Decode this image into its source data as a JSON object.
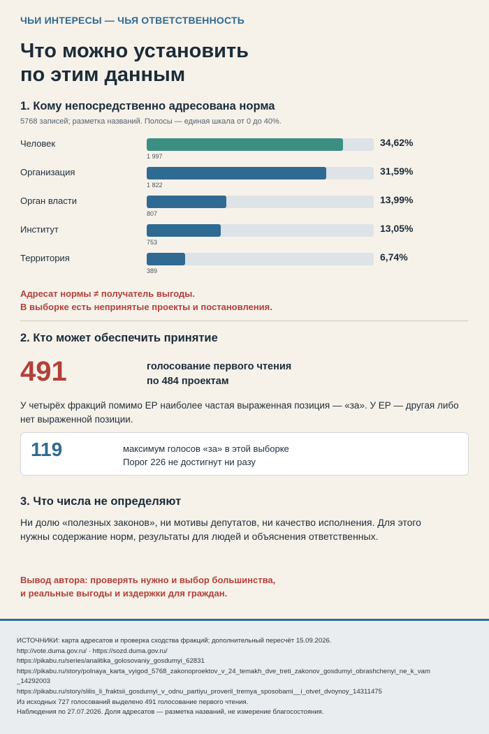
{
  "header": {
    "kicker": "ЧЬИ ИНТЕРЕСЫ — ЧЬЯ ОТВЕТСТВЕННОСТЬ",
    "title_line1": "Что можно установить",
    "title_line2": "по этим данным"
  },
  "section1": {
    "heading": "1. Кому непосредственно адресована норма",
    "note": "5768 записей; разметка названий. Полосы — единая шкала от 0 до 40%.",
    "warn_line1": "Адресат нормы ≠ получатель выгоды.",
    "warn_line2": "В выборке есть непринятые проекты и постановления."
  },
  "chart_data": {
    "type": "bar",
    "orientation": "horizontal",
    "xlim": [
      0,
      40
    ],
    "categories": [
      "Человек",
      "Организация",
      "Орган власти",
      "Институт",
      "Территория"
    ],
    "values": [
      34.62,
      31.59,
      13.99,
      13.05,
      6.74
    ],
    "value_labels": [
      "34,62%",
      "31,59%",
      "13,99%",
      "13,05%",
      "6,74%"
    ],
    "counts": [
      "1 997",
      "1 822",
      "807",
      "753",
      "389"
    ],
    "colors": [
      "#3b8f82",
      "#2f6a92",
      "#2f6a92",
      "#2f6a92",
      "#2f6a92"
    ]
  },
  "section2": {
    "heading": "2. Кто может обеспечить принятие",
    "big_number": "491",
    "big_desc_line1": "голосование первого чтения",
    "big_desc_line2": "по 484 проектам",
    "para_line1": "У четырёх фракций помимо ЕР наиболее частая выраженная позиция — «за». У ЕР — другая либо",
    "para_line2": "нет выраженной позиции.",
    "card_number": "119",
    "card_line1": "максимум голосов «за» в этой выборке",
    "card_line2": "Порог 226 не достигнут ни разу"
  },
  "section3": {
    "heading": "3. Что числа не определяют",
    "para_line1": "Ни долю «полезных законов», ни мотивы депутатов, ни качество исполнения. Для этого",
    "para_line2": "нужны содержание норм, результаты для людей и объяснения ответственных.",
    "conclusion_line1": "Вывод автора: проверять нужно и выбор большинства,",
    "conclusion_line2": "и реальные выгоды и издержки для граждан."
  },
  "footer": {
    "lines": [
      "ИСТОЧНИКИ: карта адресатов и проверка сходства фракций; дополнительный пересчёт 15.09.2026.",
      "http://vote.duma.gov.ru/ · https://sozd.duma.gov.ru/",
      "https://pikabu.ru/series/analitika_golosovaniy_gosdumyi_62831",
      "https://pikabu.ru/story/polnaya_karta_vyigod_5768_zakonoproektov_v_24_temakh_dve_treti_zakonov_gosdumyi_obrashchenyi_ne_k_vam",
      "_14292003",
      "https://pikabu.ru/story/slilis_li_fraktsii_gosdumyi_v_odnu_partiyu_proveril_tremya_sposobami__i_otvet_dvoynoy_14311475",
      "Из исходных 727 голосований выделено 491 голосование первого чтения.",
      "Наблюдения по 27.07.2026. Доля адресатов — разметка названий, не измерение благосостояния."
    ]
  }
}
